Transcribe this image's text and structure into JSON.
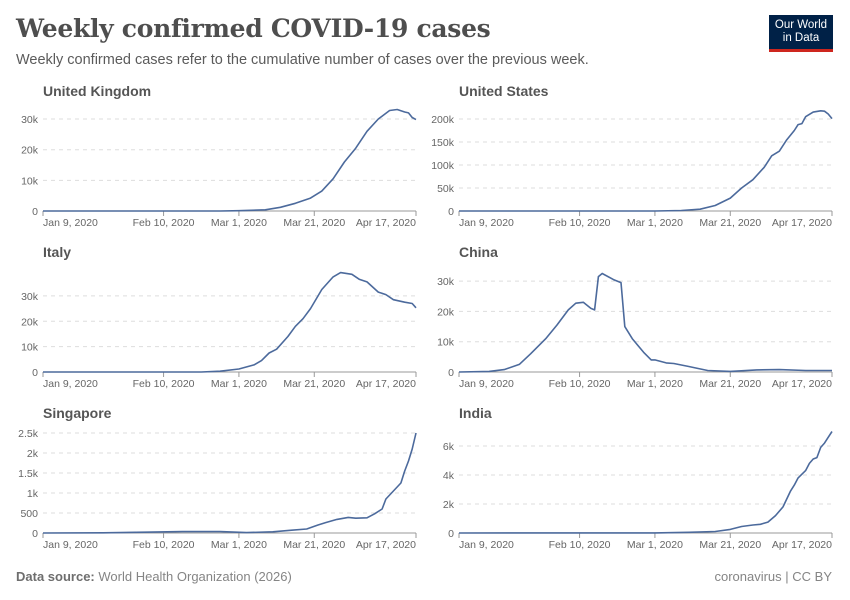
{
  "header": {
    "title": "Weekly confirmed COVID-19 cases",
    "subtitle": "Weekly confirmed cases refer to the cumulative number of cases over the previous week.",
    "logo": [
      "Our World",
      "in Data"
    ]
  },
  "footer": {
    "source_label": "Data source:",
    "source_value": "World Health Organization (2026)",
    "right": "coronavirus | CC BY"
  },
  "colors": {
    "line": "#4c6a9c",
    "grid": "#dddddd",
    "axis": "#999999",
    "logo_bg": "#002147",
    "logo_accent": "#ce261e"
  },
  "chart_data": [
    {
      "type": "line",
      "title": "United Kingdom",
      "xlim": [
        "2020-01-09",
        "2020-04-17"
      ],
      "ylim": [
        0,
        33600
      ],
      "x_ticks": [
        [
          "2020-01-09",
          "Jan 9, 2020"
        ],
        [
          "2020-02-10",
          "Feb 10, 2020"
        ],
        [
          "2020-03-01",
          "Mar 1, 2020"
        ],
        [
          "2020-03-21",
          "Mar 21, 2020"
        ],
        [
          "2020-04-17",
          "Apr 17, 2020"
        ]
      ],
      "y_ticks": [
        [
          0,
          "0"
        ],
        [
          10000,
          "10k"
        ],
        [
          20000,
          "20k"
        ],
        [
          30000,
          "30k"
        ]
      ],
      "points": [
        [
          "2020-01-09",
          0
        ],
        [
          "2020-02-25",
          0
        ],
        [
          "2020-03-01",
          100
        ],
        [
          "2020-03-08",
          400
        ],
        [
          "2020-03-12",
          1200
        ],
        [
          "2020-03-16",
          2500
        ],
        [
          "2020-03-20",
          4200
        ],
        [
          "2020-03-23",
          6500
        ],
        [
          "2020-03-26",
          10500
        ],
        [
          "2020-03-29",
          16000
        ],
        [
          "2020-04-01",
          20500
        ],
        [
          "2020-04-04",
          26000
        ],
        [
          "2020-04-07",
          30000
        ],
        [
          "2020-04-10",
          32800
        ],
        [
          "2020-04-12",
          33100
        ],
        [
          "2020-04-14",
          32300
        ],
        [
          "2020-04-15",
          32000
        ],
        [
          "2020-04-16",
          30500
        ],
        [
          "2020-04-17",
          29800
        ]
      ]
    },
    {
      "type": "line",
      "title": "United States",
      "xlim": [
        "2020-01-09",
        "2020-04-17"
      ],
      "ylim": [
        0,
        224000
      ],
      "x_ticks": [
        [
          "2020-01-09",
          "Jan 9, 2020"
        ],
        [
          "2020-02-10",
          "Feb 10, 2020"
        ],
        [
          "2020-03-01",
          "Mar 1, 2020"
        ],
        [
          "2020-03-21",
          "Mar 21, 2020"
        ],
        [
          "2020-04-17",
          "Apr 17, 2020"
        ]
      ],
      "y_ticks": [
        [
          0,
          "0"
        ],
        [
          50000,
          "50k"
        ],
        [
          100000,
          "100k"
        ],
        [
          150000,
          "150k"
        ],
        [
          200000,
          "200k"
        ]
      ],
      "points": [
        [
          "2020-01-09",
          0
        ],
        [
          "2020-03-01",
          100
        ],
        [
          "2020-03-08",
          1000
        ],
        [
          "2020-03-13",
          4000
        ],
        [
          "2020-03-17",
          12000
        ],
        [
          "2020-03-21",
          28000
        ],
        [
          "2020-03-24",
          50000
        ],
        [
          "2020-03-27",
          68000
        ],
        [
          "2020-03-30",
          95000
        ],
        [
          "2020-04-01",
          120000
        ],
        [
          "2020-04-03",
          130000
        ],
        [
          "2020-04-05",
          155000
        ],
        [
          "2020-04-07",
          175000
        ],
        [
          "2020-04-08",
          188000
        ],
        [
          "2020-04-09",
          190000
        ],
        [
          "2020-04-10",
          205000
        ],
        [
          "2020-04-12",
          215000
        ],
        [
          "2020-04-14",
          218000
        ],
        [
          "2020-04-15",
          217000
        ],
        [
          "2020-04-16",
          211000
        ],
        [
          "2020-04-17",
          201000
        ]
      ]
    },
    {
      "type": "line",
      "title": "Italy",
      "xlim": [
        "2020-01-09",
        "2020-04-17"
      ],
      "ylim": [
        0,
        40600
      ],
      "x_ticks": [
        [
          "2020-01-09",
          "Jan 9, 2020"
        ],
        [
          "2020-02-10",
          "Feb 10, 2020"
        ],
        [
          "2020-03-01",
          "Mar 1, 2020"
        ],
        [
          "2020-03-21",
          "Mar 21, 2020"
        ],
        [
          "2020-04-17",
          "Apr 17, 2020"
        ]
      ],
      "y_ticks": [
        [
          0,
          "0"
        ],
        [
          10000,
          "10k"
        ],
        [
          20000,
          "20k"
        ],
        [
          30000,
          "30k"
        ]
      ],
      "points": [
        [
          "2020-01-09",
          0
        ],
        [
          "2020-02-20",
          0
        ],
        [
          "2020-02-25",
          300
        ],
        [
          "2020-03-01",
          1200
        ],
        [
          "2020-03-05",
          2800
        ],
        [
          "2020-03-07",
          4500
        ],
        [
          "2020-03-09",
          7500
        ],
        [
          "2020-03-11",
          9000
        ],
        [
          "2020-03-14",
          14000
        ],
        [
          "2020-03-16",
          18000
        ],
        [
          "2020-03-18",
          21000
        ],
        [
          "2020-03-20",
          25000
        ],
        [
          "2020-03-23",
          32500
        ],
        [
          "2020-03-26",
          37500
        ],
        [
          "2020-03-28",
          39200
        ],
        [
          "2020-03-31",
          38500
        ],
        [
          "2020-04-02",
          36500
        ],
        [
          "2020-04-04",
          35500
        ],
        [
          "2020-04-07",
          31500
        ],
        [
          "2020-04-09",
          30500
        ],
        [
          "2020-04-11",
          28500
        ],
        [
          "2020-04-14",
          27500
        ],
        [
          "2020-04-16",
          27000
        ],
        [
          "2020-04-17",
          25300
        ]
      ]
    },
    {
      "type": "line",
      "title": "China",
      "xlim": [
        "2020-01-09",
        "2020-04-17"
      ],
      "ylim": [
        0,
        34000
      ],
      "x_ticks": [
        [
          "2020-01-09",
          "Jan 9, 2020"
        ],
        [
          "2020-02-10",
          "Feb 10, 2020"
        ],
        [
          "2020-03-01",
          "Mar 1, 2020"
        ],
        [
          "2020-03-21",
          "Mar 21, 2020"
        ],
        [
          "2020-04-17",
          "Apr 17, 2020"
        ]
      ],
      "y_ticks": [
        [
          0,
          "0"
        ],
        [
          10000,
          "10k"
        ],
        [
          20000,
          "20k"
        ],
        [
          30000,
          "30k"
        ]
      ],
      "points": [
        [
          "2020-01-09",
          0
        ],
        [
          "2020-01-17",
          200
        ],
        [
          "2020-01-21",
          800
        ],
        [
          "2020-01-25",
          2500
        ],
        [
          "2020-01-28",
          6000
        ],
        [
          "2020-02-01",
          11000
        ],
        [
          "2020-02-04",
          15500
        ],
        [
          "2020-02-07",
          20500
        ],
        [
          "2020-02-09",
          22700
        ],
        [
          "2020-02-11",
          23000
        ],
        [
          "2020-02-13",
          21000
        ],
        [
          "2020-02-14",
          20500
        ],
        [
          "2020-02-15",
          31500
        ],
        [
          "2020-02-16",
          32500
        ],
        [
          "2020-02-19",
          30500
        ],
        [
          "2020-02-21",
          29500
        ],
        [
          "2020-02-22",
          15000
        ],
        [
          "2020-02-24",
          11000
        ],
        [
          "2020-02-27",
          6500
        ],
        [
          "2020-02-29",
          4000
        ],
        [
          "2020-03-01",
          4000
        ],
        [
          "2020-03-04",
          3000
        ],
        [
          "2020-03-06",
          2800
        ],
        [
          "2020-03-10",
          1800
        ],
        [
          "2020-03-12",
          1300
        ],
        [
          "2020-03-15",
          500
        ],
        [
          "2020-03-21",
          200
        ],
        [
          "2020-03-28",
          700
        ],
        [
          "2020-04-03",
          800
        ],
        [
          "2020-04-10",
          500
        ],
        [
          "2020-04-17",
          500
        ]
      ]
    },
    {
      "type": "line",
      "title": "Singapore",
      "xlim": [
        "2020-01-09",
        "2020-04-17"
      ],
      "ylim": [
        0,
        2575
      ],
      "x_ticks": [
        [
          "2020-01-09",
          "Jan 9, 2020"
        ],
        [
          "2020-02-10",
          "Feb 10, 2020"
        ],
        [
          "2020-03-01",
          "Mar 1, 2020"
        ],
        [
          "2020-03-21",
          "Mar 21, 2020"
        ],
        [
          "2020-04-17",
          "Apr 17, 2020"
        ]
      ],
      "y_ticks": [
        [
          0,
          "0"
        ],
        [
          500,
          "500"
        ],
        [
          1000,
          "1k"
        ],
        [
          1500,
          "1.5k"
        ],
        [
          2000,
          "2k"
        ],
        [
          2500,
          "2.5k"
        ]
      ],
      "points": [
        [
          "2020-01-09",
          0
        ],
        [
          "2020-01-25",
          5
        ],
        [
          "2020-02-05",
          20
        ],
        [
          "2020-02-15",
          35
        ],
        [
          "2020-02-25",
          35
        ],
        [
          "2020-03-03",
          10
        ],
        [
          "2020-03-10",
          30
        ],
        [
          "2020-03-15",
          70
        ],
        [
          "2020-03-19",
          100
        ],
        [
          "2020-03-22",
          200
        ],
        [
          "2020-03-24",
          260
        ],
        [
          "2020-03-27",
          340
        ],
        [
          "2020-03-30",
          390
        ],
        [
          "2020-04-01",
          370
        ],
        [
          "2020-04-04",
          380
        ],
        [
          "2020-04-06",
          480
        ],
        [
          "2020-04-08",
          600
        ],
        [
          "2020-04-09",
          850
        ],
        [
          "2020-04-11",
          1050
        ],
        [
          "2020-04-13",
          1250
        ],
        [
          "2020-04-14",
          1550
        ],
        [
          "2020-04-15",
          1800
        ],
        [
          "2020-04-16",
          2100
        ],
        [
          "2020-04-17",
          2500
        ]
      ]
    },
    {
      "type": "line",
      "title": "India",
      "xlim": [
        "2020-01-09",
        "2020-04-17"
      ],
      "ylim": [
        0,
        7100
      ],
      "x_ticks": [
        [
          "2020-01-09",
          "Jan 9, 2020"
        ],
        [
          "2020-02-10",
          "Feb 10, 2020"
        ],
        [
          "2020-03-01",
          "Mar 1, 2020"
        ],
        [
          "2020-03-21",
          "Mar 21, 2020"
        ],
        [
          "2020-04-17",
          "Apr 17, 2020"
        ]
      ],
      "y_ticks": [
        [
          0,
          "0"
        ],
        [
          2000,
          "2k"
        ],
        [
          4000,
          "4k"
        ],
        [
          6000,
          "6k"
        ]
      ],
      "points": [
        [
          "2020-01-09",
          0
        ],
        [
          "2020-03-01",
          10
        ],
        [
          "2020-03-10",
          50
        ],
        [
          "2020-03-17",
          100
        ],
        [
          "2020-03-21",
          250
        ],
        [
          "2020-03-24",
          450
        ],
        [
          "2020-03-27",
          550
        ],
        [
          "2020-03-29",
          600
        ],
        [
          "2020-03-31",
          750
        ],
        [
          "2020-04-02",
          1200
        ],
        [
          "2020-04-04",
          1800
        ],
        [
          "2020-04-06",
          2900
        ],
        [
          "2020-04-07",
          3300
        ],
        [
          "2020-04-08",
          3800
        ],
        [
          "2020-04-10",
          4300
        ],
        [
          "2020-04-11",
          4800
        ],
        [
          "2020-04-12",
          5100
        ],
        [
          "2020-04-13",
          5200
        ],
        [
          "2020-04-14",
          5900
        ],
        [
          "2020-04-15",
          6200
        ],
        [
          "2020-04-16",
          6600
        ],
        [
          "2020-04-17",
          7000
        ]
      ]
    }
  ]
}
